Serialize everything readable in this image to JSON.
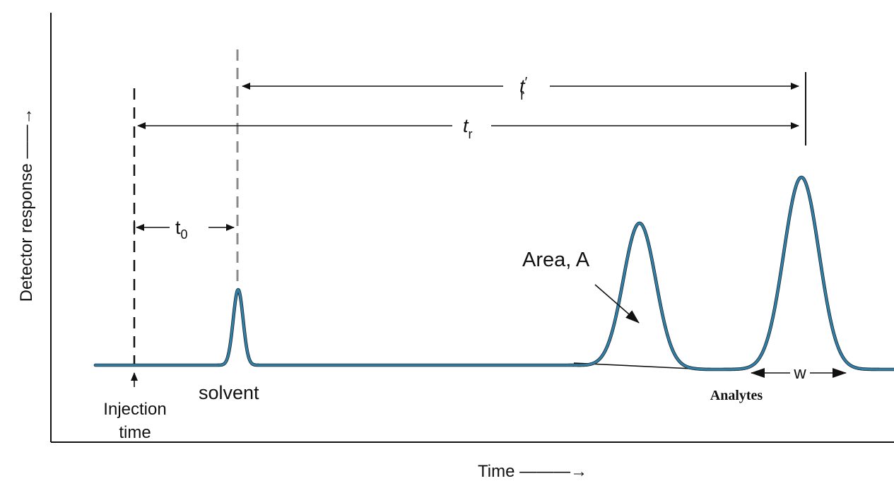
{
  "labels": {
    "y_axis": "Detector response ——→",
    "x_axis": "Time ———→",
    "t_r_prime": {
      "main": "t",
      "prime": "′",
      "sub": "r"
    },
    "t_r": {
      "main": "t",
      "sub": "r"
    },
    "t0": {
      "main": "t",
      "sub": "0"
    },
    "area": "Area, A",
    "solvent": "solvent",
    "injection_line1": "Injection",
    "injection_line2": "time",
    "w": "w",
    "analytes": "Analytes"
  },
  "colors": {
    "trace": "#2f7fa8",
    "ink": "#111111",
    "solvent_marker": "#8a8a8a"
  }
}
